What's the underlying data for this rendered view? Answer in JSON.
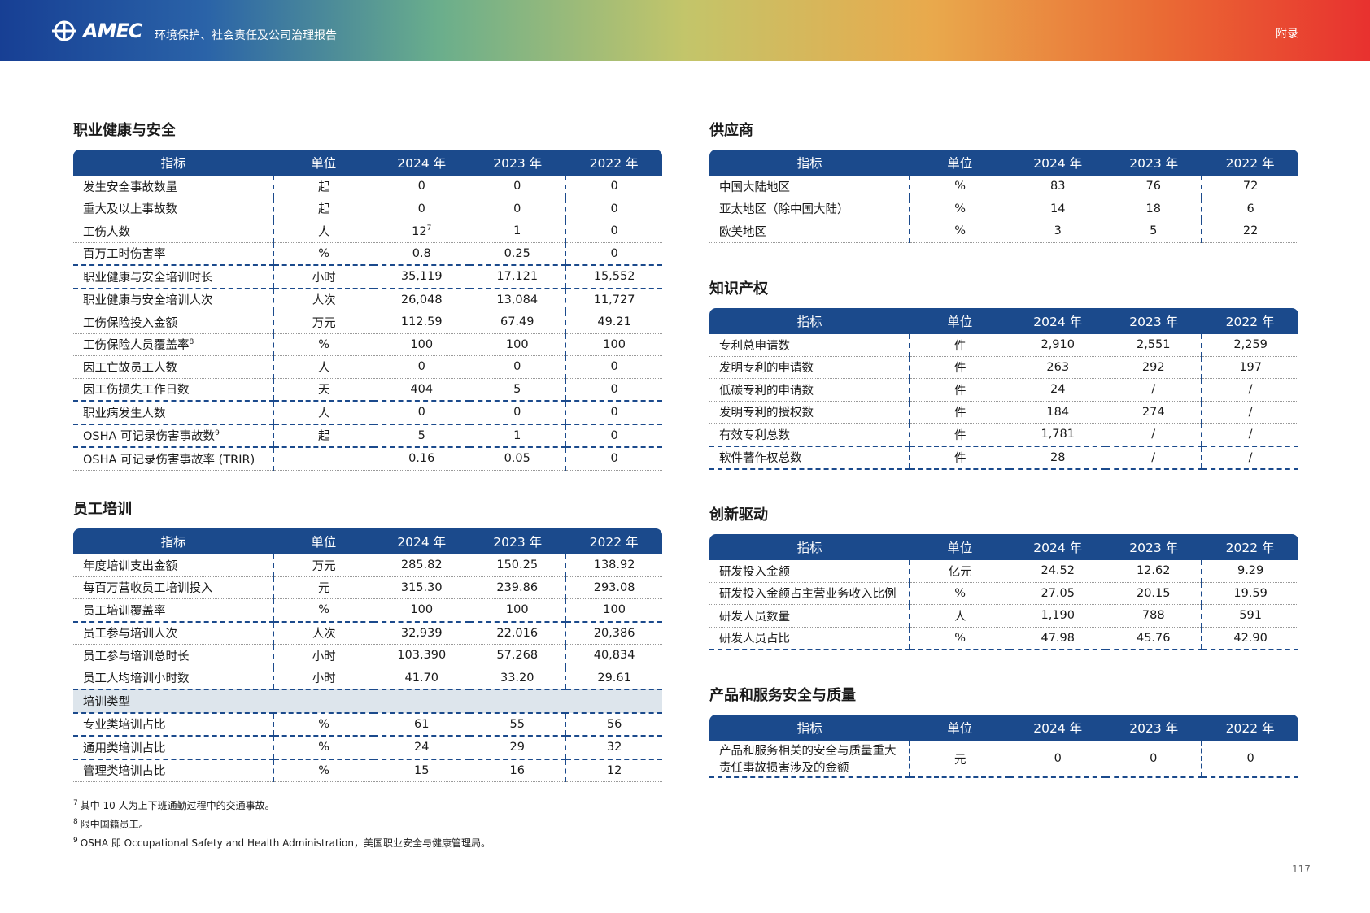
{
  "header": {
    "logo": "AMEC",
    "title": "环境保护、社会责任及公司治理报告",
    "section": "附录"
  },
  "sections": [
    {
      "title": "职业健康与安全",
      "header": [
        "指标",
        "单位",
        "2024 年",
        "2023 年",
        "2022 年"
      ],
      "rows": [
        [
          "发生安全事故数量",
          "起",
          "0",
          "0",
          "0"
        ],
        [
          "重大及以上事故数",
          "起",
          "0",
          "0",
          "0"
        ],
        [
          "工伤人数",
          "人",
          {
            "text": "12",
            "sup": "7"
          },
          "1",
          "0"
        ],
        [
          "百万工时伤害率",
          "%",
          "0.8",
          "0.25",
          "0"
        ],
        [
          "职业健康与安全培训时长",
          "小时",
          "35,119",
          "17,121",
          "15,552"
        ],
        [
          "职业健康与安全培训人次",
          "人次",
          "26,048",
          "13,084",
          "11,727"
        ],
        [
          "工伤保险投入金额",
          "万元",
          "112.59",
          "67.49",
          "49.21"
        ],
        [
          {
            "text": "工伤保险人员覆盖率",
            "sup": "8"
          },
          "%",
          "100",
          "100",
          "100"
        ],
        [
          "因工亡故员工人数",
          "人",
          "0",
          "0",
          "0"
        ],
        [
          "因工伤损失工作日数",
          "天",
          "404",
          "5",
          "0"
        ],
        [
          "职业病发生人数",
          "人",
          "0",
          "0",
          "0"
        ],
        [
          {
            "text": "OSHA 可记录伤害事故数",
            "sup": "9"
          },
          "起",
          "5",
          "1",
          "0"
        ],
        [
          "OSHA 可记录伤害事故率 (TRIR)",
          null,
          "0.16",
          "0.05",
          "0"
        ]
      ]
    },
    {
      "title": "员工培训",
      "header": [
        "指标",
        "单位",
        "2024 年",
        "2023 年",
        "2022 年"
      ],
      "rows": [
        [
          "年度培训支出金额",
          "万元",
          "285.82",
          "150.25",
          "138.92"
        ],
        [
          "每百万营收员工培训投入",
          "元",
          "315.30",
          "239.86",
          "293.08"
        ],
        [
          "员工培训覆盖率",
          "%",
          "100",
          "100",
          "100"
        ],
        [
          "员工参与培训人次",
          "人次",
          "32,939",
          "22,016",
          "20,386"
        ],
        [
          "员工参与培训总时长",
          "小时",
          "103,390",
          "57,268",
          "40,834"
        ],
        [
          "员工人均培训小时数",
          "小时",
          "41.70",
          "33.20",
          "29.61"
        ],
        [
          "培训类型"
        ],
        [
          "专业类培训占比",
          "%",
          "61",
          "55",
          "56"
        ],
        [
          "通用类培训占比",
          "%",
          "24",
          "29",
          "32"
        ],
        [
          "管理类培训占比",
          "%",
          "15",
          "16",
          "12"
        ]
      ]
    },
    {
      "title": "供应商",
      "header": [
        "指标",
        "单位",
        "2024 年",
        "2023 年",
        "2022 年"
      ],
      "rows": [
        [
          "中国大陆地区",
          "%",
          "83",
          "76",
          "72"
        ],
        [
          "亚太地区（除中国大陆）",
          "%",
          "14",
          "18",
          "6"
        ],
        [
          "欧美地区",
          "%",
          "3",
          "5",
          "22"
        ]
      ]
    },
    {
      "title": "知识产权",
      "header": [
        "指标",
        "单位",
        "2024 年",
        "2023 年",
        "2022 年"
      ],
      "rows": [
        [
          "专利总申请数",
          "件",
          "2,910",
          "2,551",
          "2,259"
        ],
        [
          "发明专利的申请数",
          "件",
          "263",
          "292",
          "197"
        ],
        [
          "低碳专利的申请数",
          "件",
          "24",
          "/",
          "/"
        ],
        [
          "发明专利的授权数",
          "件",
          "184",
          "274",
          "/"
        ],
        [
          "有效专利总数",
          "件",
          "1,781",
          "/",
          "/"
        ],
        [
          "软件著作权总数",
          "件",
          "28",
          "/",
          "/"
        ]
      ]
    },
    {
      "title": "创新驱动",
      "header": [
        "指标",
        "单位",
        "2024 年",
        "2023 年",
        "2022 年"
      ],
      "rows": [
        [
          "研发投入金额",
          "亿元",
          "24.52",
          "12.62",
          "9.29"
        ],
        [
          "研发投入金额占主营业务收入比例",
          "%",
          "27.05",
          "20.15",
          "19.59"
        ],
        [
          "研发人员数量",
          "人",
          "1,190",
          "788",
          "591"
        ],
        [
          "研发人员占比",
          "%",
          "47.98",
          "45.76",
          "42.90"
        ]
      ]
    },
    {
      "title": "产品和服务安全与质量",
      "header": [
        "指标",
        "单位",
        "2024 年",
        "2023 年",
        "2022 年"
      ],
      "rows": [
        [
          "产品和服务相关的安全与质量重大责任事故损害涉及的金额",
          "元",
          "0",
          "0",
          "0"
        ]
      ]
    }
  ],
  "footnotes": [
    {
      "mark": "7",
      "text": "其中 10 人为上下班通勤过程中的交通事故。"
    },
    {
      "mark": "8",
      "text": "限中国籍员工。"
    },
    {
      "mark": "9",
      "text": "OSHA 即 Occupational Safety and Health Administration，美国职业安全与健康管理局。"
    }
  ],
  "page_number": "117"
}
